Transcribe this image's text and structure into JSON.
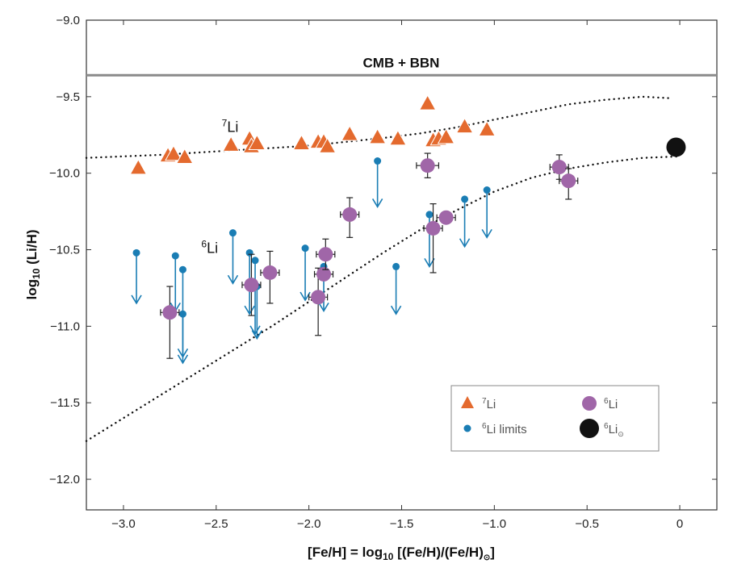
{
  "chart_data": {
    "type": "scatter",
    "xlabel": {
      "main": "[Fe/H] = log",
      "sub": "10",
      "rest": " [(Fe/H)/(Fe/H)",
      "sunsub": "⊙",
      "close": "]"
    },
    "ylabel": {
      "main": "log",
      "sub": "10",
      "rest": " (Li/H)"
    },
    "xlim": [
      -3.2,
      0.2
    ],
    "ylim": [
      -12.2,
      -9.0
    ],
    "xticks": [
      -3.0,
      -2.5,
      -2.0,
      -1.5,
      -1.0,
      -0.5,
      0
    ],
    "xtick_labels": [
      "−3.0",
      "−2.5",
      "−2.0",
      "−1.5",
      "−1.0",
      "−0.5",
      "0"
    ],
    "yticks": [
      -9.0,
      -9.5,
      -10.0,
      -10.5,
      -11.0,
      -11.5,
      -12.0
    ],
    "ytick_labels": [
      "−9.0",
      "−9.5",
      "−10.0",
      "−10.5",
      "−11.0",
      "−11.5",
      "−12.0"
    ],
    "cmb_bbn": {
      "y": -9.36,
      "label": "CMB + BBN",
      "color": "#8a8a8a"
    },
    "annotations": [
      {
        "sup": "7",
        "text": "Li",
        "x": -2.47,
        "y": -9.73
      },
      {
        "sup": "6",
        "text": "Li",
        "x": -2.58,
        "y": -10.52
      }
    ],
    "curves": [
      {
        "name": "7Li model",
        "x": [
          -3.2,
          -2.8,
          -2.4,
          -2.0,
          -1.6,
          -1.4,
          -1.2,
          -1.0,
          -0.8,
          -0.6,
          -0.4,
          -0.2,
          -0.05
        ],
        "y": [
          -9.9,
          -9.88,
          -9.85,
          -9.82,
          -9.77,
          -9.74,
          -9.7,
          -9.65,
          -9.6,
          -9.55,
          -9.52,
          -9.5,
          -9.51
        ]
      },
      {
        "name": "6Li model",
        "x": [
          -3.2,
          -3.0,
          -2.8,
          -2.6,
          -2.4,
          -2.2,
          -2.0,
          -1.8,
          -1.6,
          -1.4,
          -1.2,
          -1.0,
          -0.8,
          -0.6,
          -0.4,
          -0.2,
          0.0
        ],
        "y": [
          -11.75,
          -11.6,
          -11.45,
          -11.3,
          -11.15,
          -11.0,
          -10.84,
          -10.68,
          -10.52,
          -10.37,
          -10.24,
          -10.12,
          -10.03,
          -9.97,
          -9.93,
          -9.9,
          -9.89
        ]
      }
    ],
    "li7_color": "#e46a2e",
    "li6_color": "#a066a8",
    "limit_color": "#1a7db4",
    "sun_color": "#111111",
    "li7": [
      {
        "x": -2.92,
        "y": -9.97
      },
      {
        "x": -2.76,
        "y": -9.89
      },
      {
        "x": -2.73,
        "y": -9.88
      },
      {
        "x": -2.67,
        "y": -9.9
      },
      {
        "x": -2.42,
        "y": -9.82
      },
      {
        "x": -2.32,
        "y": -9.78
      },
      {
        "x": -2.31,
        "y": -9.83
      },
      {
        "x": -2.28,
        "y": -9.81
      },
      {
        "x": -2.04,
        "y": -9.81
      },
      {
        "x": -1.95,
        "y": -9.8
      },
      {
        "x": -1.92,
        "y": -9.8
      },
      {
        "x": -1.9,
        "y": -9.83
      },
      {
        "x": -1.78,
        "y": -9.75
      },
      {
        "x": -1.63,
        "y": -9.77
      },
      {
        "x": -1.52,
        "y": -9.78
      },
      {
        "x": -1.36,
        "y": -9.55
      },
      {
        "x": -1.33,
        "y": -9.79
      },
      {
        "x": -1.3,
        "y": -9.78
      },
      {
        "x": -1.26,
        "y": -9.77
      },
      {
        "x": -1.16,
        "y": -9.7
      },
      {
        "x": -1.04,
        "y": -9.72
      }
    ],
    "li6_limits": [
      {
        "x": -2.93,
        "y": -10.52,
        "y_end": -10.85
      },
      {
        "x": -2.72,
        "y": -10.54,
        "y_end": -10.9
      },
      {
        "x": -2.68,
        "y": -10.63,
        "y_end": -11.2
      },
      {
        "x": -2.68,
        "y": -10.92,
        "y_end": -11.24
      },
      {
        "x": -2.41,
        "y": -10.39,
        "y_end": -10.72
      },
      {
        "x": -2.32,
        "y": -10.52,
        "y_end": -10.92
      },
      {
        "x": -2.29,
        "y": -10.57,
        "y_end": -11.05
      },
      {
        "x": -2.28,
        "y": -10.74,
        "y_end": -11.08
      },
      {
        "x": -2.02,
        "y": -10.49,
        "y_end": -10.83
      },
      {
        "x": -1.92,
        "y": -10.61,
        "y_end": -10.9
      },
      {
        "x": -1.63,
        "y": -9.92,
        "y_end": -10.22
      },
      {
        "x": -1.53,
        "y": -10.61,
        "y_end": -10.92
      },
      {
        "x": -1.35,
        "y": -10.27,
        "y_end": -10.61
      },
      {
        "x": -1.16,
        "y": -10.17,
        "y_end": -10.48
      },
      {
        "x": -1.04,
        "y": -10.11,
        "y_end": -10.42
      }
    ],
    "li6": [
      {
        "x": -2.75,
        "y": -10.91,
        "xerr": 0.05,
        "yerr_lo": 0.3,
        "yerr_hi": 0.17
      },
      {
        "x": -2.31,
        "y": -10.73,
        "xerr": 0.05,
        "yerr_lo": 0.2,
        "yerr_hi": 0.2
      },
      {
        "x": -2.21,
        "y": -10.65,
        "xerr": 0.05,
        "yerr_lo": 0.2,
        "yerr_hi": 0.14
      },
      {
        "x": -1.95,
        "y": -10.81,
        "xerr": 0.05,
        "yerr_lo": 0.25,
        "yerr_hi": 0.19
      },
      {
        "x": -1.92,
        "y": -10.66,
        "xerr": 0.05,
        "yerr_lo": 0.0,
        "yerr_hi": 0.0
      },
      {
        "x": -1.91,
        "y": -10.53,
        "xerr": 0.05,
        "yerr_lo": 0.1,
        "yerr_hi": 0.1
      },
      {
        "x": -1.78,
        "y": -10.27,
        "xerr": 0.05,
        "yerr_lo": 0.15,
        "yerr_hi": 0.11
      },
      {
        "x": -1.36,
        "y": -9.95,
        "xerr": 0.06,
        "yerr_lo": 0.08,
        "yerr_hi": 0.08
      },
      {
        "x": -1.33,
        "y": -10.36,
        "xerr": 0.05,
        "yerr_lo": 0.29,
        "yerr_hi": 0.16
      },
      {
        "x": -1.26,
        "y": -10.29,
        "xerr": 0.05,
        "yerr_lo": 0.0,
        "yerr_hi": 0.0
      },
      {
        "x": -0.65,
        "y": -9.96,
        "xerr": 0.05,
        "yerr_lo": 0.08,
        "yerr_hi": 0.08
      },
      {
        "x": -0.6,
        "y": -10.05,
        "xerr": 0.05,
        "yerr_lo": 0.12,
        "yerr_hi": 0.08
      }
    ],
    "sun": {
      "x": -0.02,
      "y": -9.83
    },
    "legend": {
      "placement": "bottom-right",
      "entries": [
        {
          "marker": "triangle",
          "sup": "7",
          "label": "Li"
        },
        {
          "marker": "circle",
          "sup": "6",
          "label": "Li"
        },
        {
          "marker": "dot",
          "sup": "6",
          "label": "Li limits"
        },
        {
          "marker": "sun",
          "sup": "6",
          "label": "Li",
          "sub": "⊙"
        }
      ]
    }
  }
}
